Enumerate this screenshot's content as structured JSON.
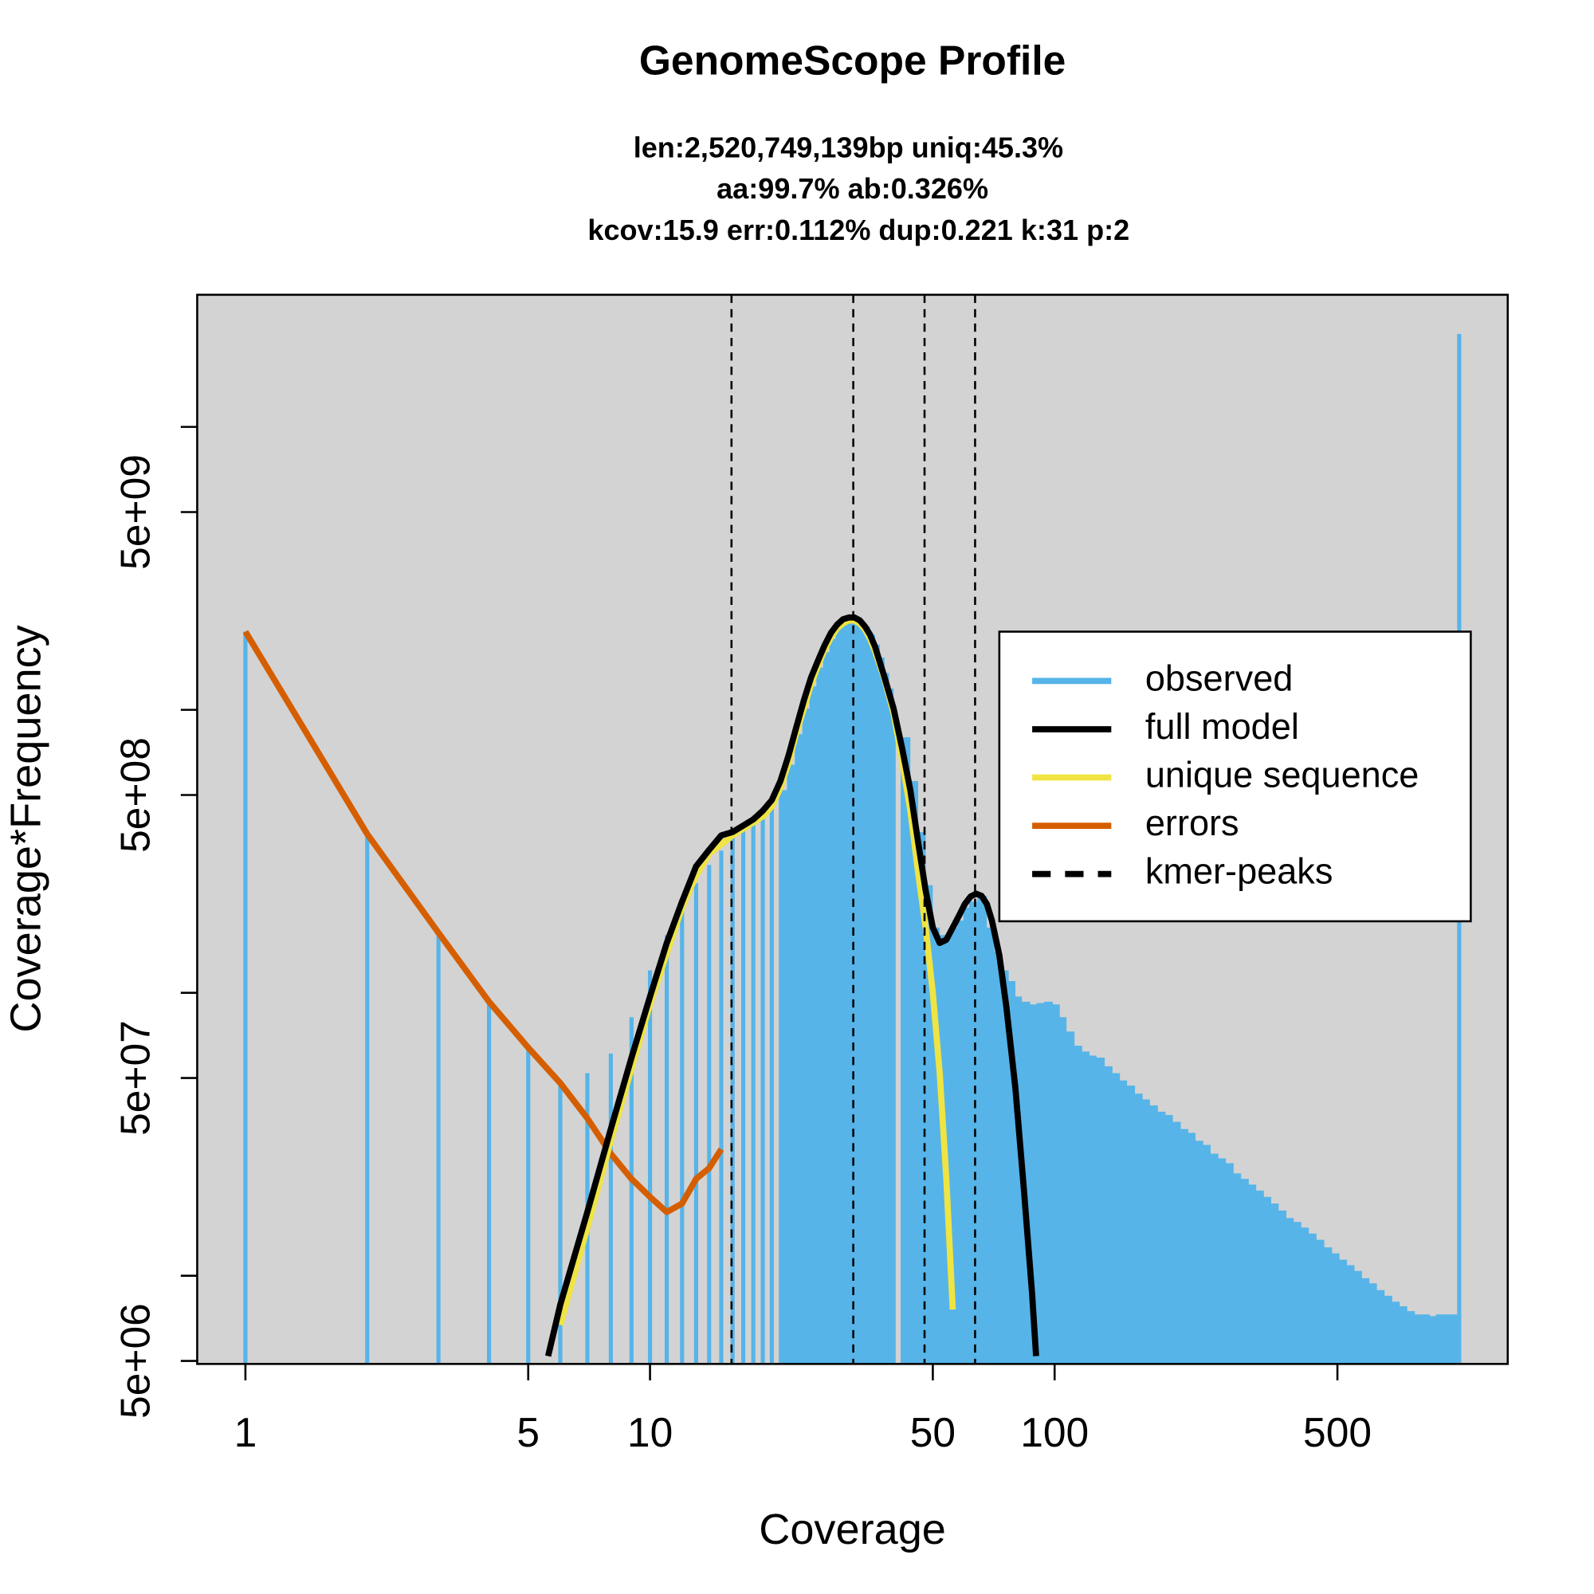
{
  "chart_data": {
    "type": "line",
    "title": "GenomeScope Profile",
    "subtitle": [
      "len:2,520,749,139bp uniq:45.3%",
      "aa:99.7% ab:0.326%",
      "kcov:15.9 err:0.112%  dup:0.221  k:31 p:2"
    ],
    "xlabel": "Coverage",
    "ylabel": "Coverage*Frequency",
    "xlog": true,
    "ylog": true,
    "xlim": [
      0.76,
      1318
    ],
    "ylim": [
      4880000,
      29300000000
    ],
    "xticks": [
      1,
      5,
      10,
      50,
      100,
      500
    ],
    "yticks": [
      {
        "value": 5000000,
        "label": "5e+06"
      },
      {
        "value": 50000000,
        "label": "5e+07"
      },
      {
        "value": 500000000,
        "label": "5e+08"
      },
      {
        "value": 5000000000,
        "label": "5e+09"
      }
    ],
    "yminorticks": [
      10000000,
      100000000,
      1000000000,
      10000000000
    ],
    "background": "#d3d3d3",
    "legend": "right",
    "series": [
      {
        "name": "observed",
        "color": "#56B4E9",
        "kind": "bars",
        "x": [
          1,
          2,
          3,
          4,
          5,
          6,
          7,
          8,
          9,
          10,
          11,
          12,
          13,
          14,
          15,
          16,
          17,
          18,
          19,
          20,
          21,
          22,
          23,
          24,
          25,
          26,
          27,
          28,
          29,
          30,
          31,
          32,
          33,
          34,
          35,
          36,
          37,
          38,
          39,
          40,
          42,
          44,
          46,
          48,
          50,
          52,
          54,
          56,
          58,
          60,
          62,
          65,
          68,
          71,
          74,
          77,
          80,
          83,
          87,
          91,
          95,
          99,
          103,
          107,
          112,
          117,
          122,
          127,
          133,
          139,
          145,
          151,
          158,
          165,
          172,
          180,
          188,
          196,
          205,
          214,
          223,
          233,
          243,
          254,
          265,
          277,
          289,
          302,
          315,
          329,
          343,
          358,
          374,
          390,
          407,
          425,
          444,
          464,
          485,
          506,
          528,
          551,
          575,
          600,
          626,
          654,
          683,
          713,
          744,
          777,
          811,
          846,
          883,
          922,
          962,
          999,
          1000
        ],
        "values": [
          1890000000,
          364000000,
          163000000,
          93000000,
          63000000,
          48000000,
          52000000,
          61000000,
          82000000,
          120000000,
          160000000,
          206000000,
          244000000,
          283000000,
          318000000,
          364000000,
          386000000,
          409000000,
          430000000,
          456000000,
          520000000,
          640000000,
          820000000,
          1010000000,
          1210000000,
          1410000000,
          1600000000,
          1780000000,
          1940000000,
          2050000000,
          2100000000,
          2100000000,
          2050000000,
          1970000000,
          1840000000,
          1700000000,
          1530000000,
          1350000000,
          1190000000,
          1030000000,
          800000000,
          560000000,
          370000000,
          240000000,
          170000000,
          160000000,
          160000000,
          170000000,
          180000000,
          200000000,
          210000000,
          220000000,
          170000000,
          140000000,
          120000000,
          110000000,
          97000000,
          93000000,
          91000000,
          92000000,
          93000000,
          91000000,
          82000000,
          73000000,
          65000000,
          62000000,
          60000000,
          59000000,
          55000000,
          52000000,
          49000000,
          47000000,
          44000000,
          42000000,
          40000000,
          38000000,
          37000000,
          35000000,
          33000000,
          32000000,
          30000000,
          29000000,
          27000000,
          26000000,
          25000000,
          23000000,
          22000000,
          21000000,
          20000000,
          19000000,
          18000000,
          17000000,
          16000000,
          15500000,
          14800000,
          14100000,
          13400000,
          12600000,
          12000000,
          11400000,
          10900000,
          10400000,
          9800000,
          9400000,
          8900000,
          8500000,
          8100000,
          7800000,
          7500000,
          7300000,
          7300000,
          7200000,
          7300000,
          7300000,
          7300000,
          7300000,
          21300000000
        ]
      },
      {
        "name": "full model",
        "color": "#000000",
        "kind": "line",
        "x": [
          5.6,
          6,
          7,
          8,
          9,
          10,
          11,
          12,
          13,
          14,
          15,
          16,
          17,
          18,
          19,
          20,
          21,
          22,
          23,
          24,
          25,
          26,
          27,
          28,
          29,
          30,
          31,
          32,
          33,
          34,
          35,
          36,
          38,
          40,
          42,
          44,
          46,
          48,
          50,
          52,
          54,
          56,
          58,
          60,
          62,
          64,
          66,
          68,
          70,
          73,
          76,
          80,
          84,
          88,
          90
        ],
        "values": [
          5200000,
          7900000,
          16800000,
          33000000,
          59000000,
          97000000,
          150000000,
          210000000,
          280000000,
          320000000,
          360000000,
          370000000,
          390000000,
          410000000,
          440000000,
          480000000,
          560000000,
          690000000,
          870000000,
          1080000000,
          1300000000,
          1490000000,
          1690000000,
          1870000000,
          2000000000,
          2090000000,
          2120000000,
          2120000000,
          2070000000,
          1970000000,
          1840000000,
          1670000000,
          1300000000,
          1010000000,
          730000000,
          520000000,
          340000000,
          230000000,
          170000000,
          150000000,
          154000000,
          170000000,
          187000000,
          206000000,
          219000000,
          224000000,
          220000000,
          206000000,
          180000000,
          136000000,
          89000000,
          46000000,
          20000000,
          8600000,
          5200000
        ]
      },
      {
        "name": "unique sequence",
        "color": "#F0E442",
        "kind": "line",
        "x": [
          6,
          7,
          8,
          9,
          10,
          11,
          12,
          13,
          14,
          15,
          16,
          17,
          18,
          19,
          20,
          21,
          22,
          23,
          24,
          25,
          26,
          27,
          28,
          29,
          30,
          31,
          32,
          33,
          34,
          35,
          36,
          38,
          40,
          42,
          44,
          46,
          48,
          50,
          52,
          54,
          56
        ],
        "values": [
          6700000,
          14800000,
          30000000,
          54000000,
          91000000,
          138000000,
          200000000,
          260000000,
          310000000,
          335000000,
          360000000,
          380000000,
          400000000,
          420000000,
          456000000,
          530000000,
          650000000,
          830000000,
          1010000000,
          1230000000,
          1430000000,
          1630000000,
          1800000000,
          1940000000,
          2020000000,
          2070000000,
          2070000000,
          2020000000,
          1920000000,
          1780000000,
          1610000000,
          1280000000,
          970000000,
          660000000,
          440000000,
          265000000,
          170000000,
          100000000,
          52000000,
          22000000,
          7600000
        ]
      },
      {
        "name": "errors",
        "color": "#D55E00",
        "kind": "line",
        "x": [
          1,
          2,
          3,
          4,
          5,
          6,
          7,
          8,
          9,
          10,
          11,
          12,
          13,
          14,
          15
        ],
        "values": [
          1890000000,
          364000000,
          163000000,
          93000000,
          64000000,
          48000000,
          36000000,
          27000000,
          22000000,
          19000000,
          16800000,
          18000000,
          22000000,
          24000000,
          28000000
        ]
      },
      {
        "name": "kmer-peaks",
        "color": "#000000",
        "kind": "vline",
        "x": [
          15.9,
          31.8,
          47.7,
          63.6
        ]
      }
    ]
  }
}
